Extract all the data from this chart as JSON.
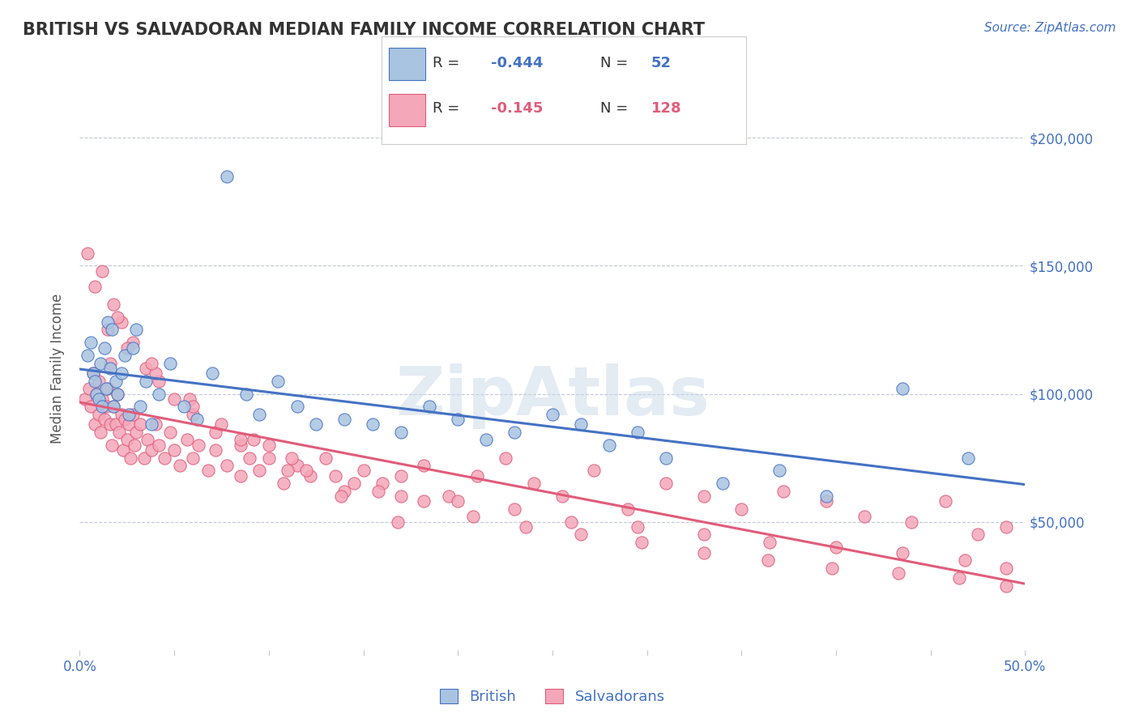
{
  "title": "BRITISH VS SALVADORAN MEDIAN FAMILY INCOME CORRELATION CHART",
  "source": "Source: ZipAtlas.com",
  "xlabel": "",
  "ylabel": "Median Family Income",
  "xlim": [
    0.0,
    0.5
  ],
  "ylim": [
    0,
    220000
  ],
  "yticks": [
    0,
    50000,
    100000,
    150000,
    200000
  ],
  "ytick_labels": [
    "",
    "$50,000",
    "$100,000",
    "$150,000",
    "$200,000"
  ],
  "xticks": [
    0.0,
    0.05,
    0.1,
    0.15,
    0.2,
    0.25,
    0.3,
    0.35,
    0.4,
    0.45,
    0.5
  ],
  "xtick_labels": [
    "0.0%",
    "",
    "",
    "",
    "",
    "",
    "",
    "",
    "",
    "",
    "50.0%"
  ],
  "british_R": -0.444,
  "british_N": 52,
  "salvadoran_R": -0.145,
  "salvadoran_N": 128,
  "british_color": "#a8c4e0",
  "salvadoran_color": "#f4a7b9",
  "british_line_color": "#4472c4",
  "salvadoran_line_color": "#e05c7a",
  "title_color": "#333333",
  "tick_color": "#4472c4",
  "grid_color": "#c0c8d8",
  "watermark_color": "#c8d8e8",
  "background_color": "#ffffff",
  "british_x": [
    0.004,
    0.006,
    0.007,
    0.008,
    0.009,
    0.01,
    0.011,
    0.012,
    0.013,
    0.014,
    0.015,
    0.016,
    0.017,
    0.018,
    0.019,
    0.02,
    0.022,
    0.024,
    0.026,
    0.028,
    0.03,
    0.032,
    0.035,
    0.038,
    0.042,
    0.048,
    0.055,
    0.062,
    0.07,
    0.078,
    0.088,
    0.095,
    0.105,
    0.115,
    0.125,
    0.14,
    0.155,
    0.17,
    0.185,
    0.2,
    0.215,
    0.23,
    0.25,
    0.265,
    0.28,
    0.295,
    0.31,
    0.34,
    0.37,
    0.395,
    0.435,
    0.47
  ],
  "british_y": [
    115000,
    120000,
    108000,
    105000,
    100000,
    98000,
    112000,
    95000,
    118000,
    102000,
    128000,
    110000,
    125000,
    95000,
    105000,
    100000,
    108000,
    115000,
    92000,
    118000,
    125000,
    95000,
    105000,
    88000,
    100000,
    112000,
    95000,
    90000,
    108000,
    185000,
    100000,
    92000,
    105000,
    95000,
    88000,
    90000,
    88000,
    85000,
    95000,
    90000,
    82000,
    85000,
    92000,
    88000,
    80000,
    85000,
    75000,
    65000,
    70000,
    60000,
    102000,
    75000
  ],
  "salvadoran_x": [
    0.003,
    0.005,
    0.006,
    0.007,
    0.008,
    0.009,
    0.01,
    0.01,
    0.011,
    0.012,
    0.013,
    0.014,
    0.015,
    0.016,
    0.016,
    0.017,
    0.018,
    0.019,
    0.02,
    0.021,
    0.022,
    0.023,
    0.024,
    0.025,
    0.026,
    0.027,
    0.028,
    0.029,
    0.03,
    0.032,
    0.034,
    0.036,
    0.038,
    0.04,
    0.042,
    0.045,
    0.048,
    0.05,
    0.053,
    0.057,
    0.06,
    0.063,
    0.068,
    0.072,
    0.078,
    0.085,
    0.09,
    0.095,
    0.1,
    0.108,
    0.115,
    0.122,
    0.13,
    0.14,
    0.15,
    0.16,
    0.17,
    0.182,
    0.195,
    0.21,
    0.225,
    0.24,
    0.255,
    0.272,
    0.29,
    0.31,
    0.33,
    0.35,
    0.372,
    0.395,
    0.415,
    0.44,
    0.458,
    0.475,
    0.49,
    0.004,
    0.008,
    0.012,
    0.018,
    0.022,
    0.028,
    0.035,
    0.042,
    0.05,
    0.06,
    0.072,
    0.085,
    0.1,
    0.12,
    0.145,
    0.17,
    0.2,
    0.23,
    0.26,
    0.295,
    0.33,
    0.365,
    0.4,
    0.435,
    0.468,
    0.49,
    0.015,
    0.025,
    0.04,
    0.058,
    0.075,
    0.092,
    0.112,
    0.135,
    0.158,
    0.182,
    0.208,
    0.236,
    0.265,
    0.297,
    0.33,
    0.364,
    0.398,
    0.433,
    0.465,
    0.49,
    0.02,
    0.038,
    0.06,
    0.085,
    0.11,
    0.138,
    0.168
  ],
  "salvadoran_y": [
    98000,
    102000,
    95000,
    108000,
    88000,
    100000,
    92000,
    105000,
    85000,
    98000,
    90000,
    95000,
    102000,
    88000,
    112000,
    80000,
    95000,
    88000,
    100000,
    85000,
    92000,
    78000,
    90000,
    82000,
    88000,
    75000,
    92000,
    80000,
    85000,
    88000,
    75000,
    82000,
    78000,
    88000,
    80000,
    75000,
    85000,
    78000,
    72000,
    82000,
    75000,
    80000,
    70000,
    78000,
    72000,
    68000,
    75000,
    70000,
    80000,
    65000,
    72000,
    68000,
    75000,
    62000,
    70000,
    65000,
    68000,
    72000,
    60000,
    68000,
    75000,
    65000,
    60000,
    70000,
    55000,
    65000,
    60000,
    55000,
    62000,
    58000,
    52000,
    50000,
    58000,
    45000,
    48000,
    155000,
    142000,
    148000,
    135000,
    128000,
    120000,
    110000,
    105000,
    98000,
    92000,
    85000,
    80000,
    75000,
    70000,
    65000,
    60000,
    58000,
    55000,
    50000,
    48000,
    45000,
    42000,
    40000,
    38000,
    35000,
    32000,
    125000,
    118000,
    108000,
    98000,
    88000,
    82000,
    75000,
    68000,
    62000,
    58000,
    52000,
    48000,
    45000,
    42000,
    38000,
    35000,
    32000,
    30000,
    28000,
    25000,
    130000,
    112000,
    95000,
    82000,
    70000,
    60000,
    50000
  ]
}
